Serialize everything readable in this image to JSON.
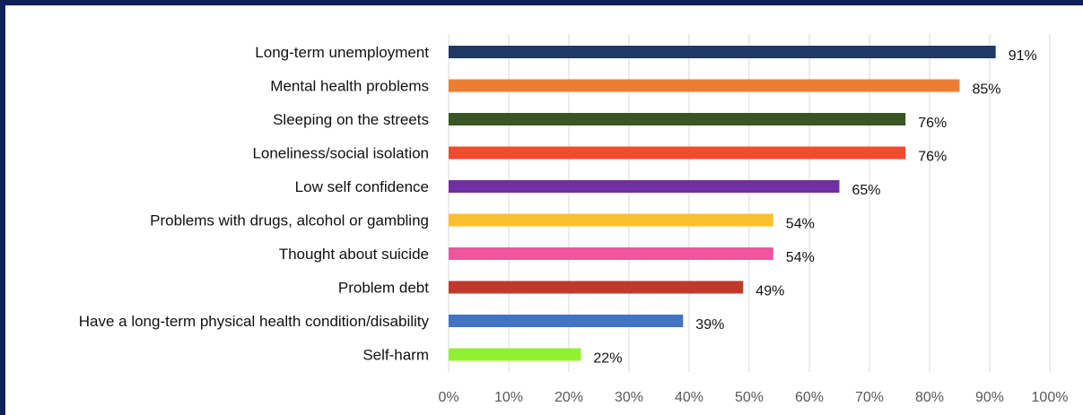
{
  "chart_data": {
    "type": "bar",
    "orientation": "horizontal",
    "title": "",
    "xlabel": "",
    "ylabel": "",
    "categories": [
      "Long-term unemployment",
      "Mental health problems",
      "Sleeping on the streets",
      "Loneliness/social isolation",
      "Low self confidence",
      "Problems with drugs, alcohol or gambling",
      "Thought about suicide",
      "Problem debt",
      "Have a long-term physical health condition/disability",
      "Self-harm"
    ],
    "values": [
      91,
      85,
      76,
      76,
      65,
      54,
      54,
      49,
      39,
      22
    ],
    "value_labels": [
      "91%",
      "85%",
      "76%",
      "76%",
      "65%",
      "54%",
      "54%",
      "49%",
      "39%",
      "22%"
    ],
    "colors": [
      "#1f3864",
      "#ed7d31",
      "#375623",
      "#f04b2e",
      "#7030a0",
      "#fbc02d",
      "#f0569c",
      "#c0392b",
      "#4472c4",
      "#92f033"
    ],
    "xlim": [
      0,
      100
    ],
    "x_ticks": [
      0,
      10,
      20,
      30,
      40,
      50,
      60,
      70,
      80,
      90,
      100
    ],
    "x_tick_labels": [
      "0%",
      "10%",
      "20%",
      "30%",
      "40%",
      "50%",
      "60%",
      "70%",
      "80%",
      "90%",
      "100%"
    ],
    "grid": "vertical",
    "frame_color": "#11205a"
  }
}
